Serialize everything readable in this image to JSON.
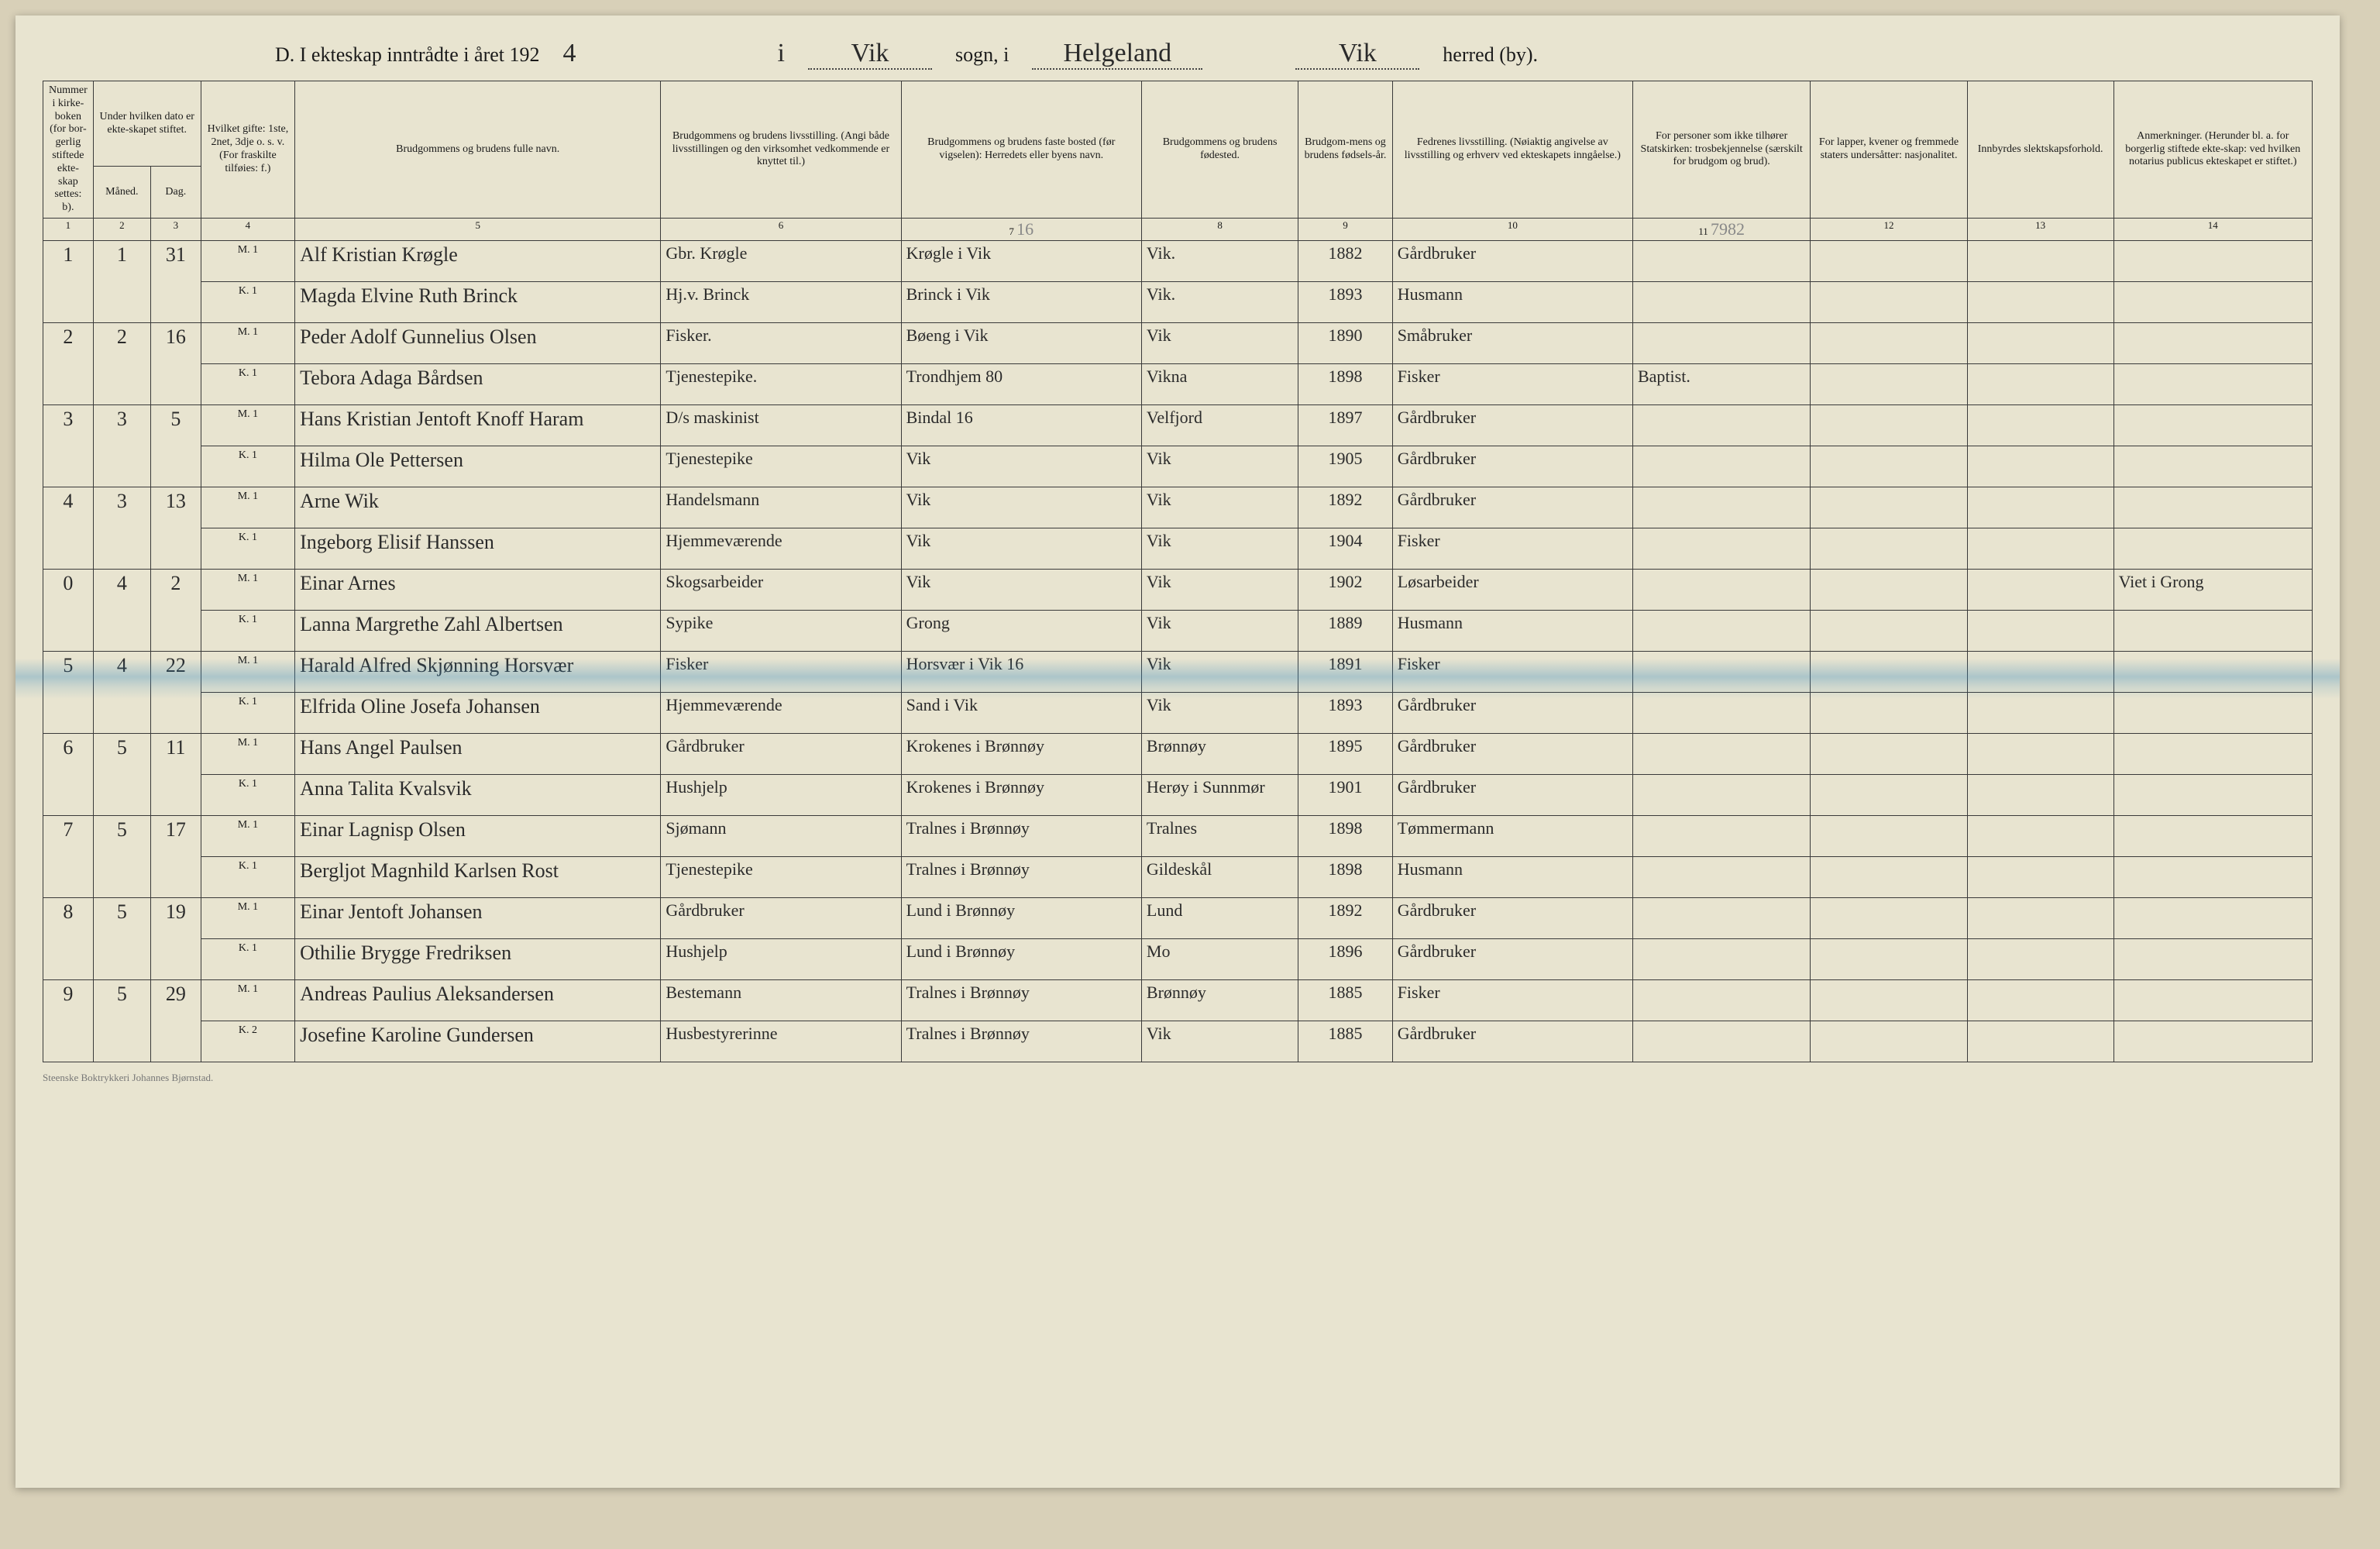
{
  "title": {
    "prefix": "D.  I ekteskap inntrådte i året 192",
    "year_suffix": "4",
    "mid1_prefix": "i",
    "sogn_value": "Vik",
    "mid2": "sogn, i",
    "region_value": "Helgeland",
    "herred_value": "Vik",
    "suffix": "herred (by)."
  },
  "headers": {
    "c1": "Nummer i kirke-boken (for bor-gerlig stiftede ekte-skap settes: b).",
    "c2a": "Under hvilken dato er ekte-skapet stiftet.",
    "c2_m": "Måned.",
    "c2_d": "Dag.",
    "c4": "Hvilket gifte: 1ste, 2net, 3dje o. s. v. (For fraskilte tilføies: f.)",
    "c5": "Brudgommens og brudens fulle navn.",
    "c6": "Brudgommens og brudens livsstilling. (Angi både livsstillingen og den virksomhet vedkommende er knyttet til.)",
    "c7": "Brudgommens og brudens faste bosted (før vigselen): Herredets eller byens navn.",
    "c8": "Brudgommens og brudens fødested.",
    "c9": "Brudgom-mens og brudens fødsels-år.",
    "c10": "Fedrenes livsstilling. (Nøiaktig angivelse av livsstilling og erhverv ved ekteskapets inngåelse.)",
    "c11": "For personer som ikke tilhører Statskirken: trosbekjennelse (særskilt for brudgom og brud).",
    "c12": "For lapper, kvener og fremmede staters undersåtter: nasjonalitet.",
    "c13": "Innbyrdes slektskapsforhold.",
    "c14": "Anmerkninger. (Herunder bl. a. for borgerlig stiftede ekte-skap: ved hvilken notarius publicus ekteskapet er stiftet.)"
  },
  "colnums": [
    "1",
    "2",
    "3",
    "4",
    "5",
    "6",
    "7",
    "8",
    "9",
    "10",
    "11",
    "12",
    "13",
    "14"
  ],
  "pencil_col7": "16",
  "pencil_col11": "7982",
  "rows": [
    {
      "num": "1",
      "maaned": "1",
      "dag": "31",
      "groom": {
        "gifte": "M. 1",
        "navn": "Alf Kristian Krøgle",
        "stilling": "Gbr. Krøgle",
        "bosted": "Krøgle i Vik",
        "fodested": "Vik.",
        "aar": "1882",
        "far": "Gårdbruker",
        "tros": "",
        "nat": "",
        "slekt": "",
        "anm": ""
      },
      "bride": {
        "gifte": "K. 1",
        "navn": "Magda Elvine Ruth Brinck",
        "stilling": "Hj.v. Brinck",
        "bosted": "Brinck i Vik",
        "fodested": "Vik.",
        "aar": "1893",
        "far": "Husmann",
        "tros": "",
        "nat": "",
        "slekt": "",
        "anm": ""
      }
    },
    {
      "num": "2",
      "maaned": "2",
      "dag": "16",
      "groom": {
        "gifte": "M. 1",
        "navn": "Peder Adolf Gunnelius Olsen",
        "stilling": "Fisker.",
        "bosted": "Bøeng i Vik",
        "fodested": "Vik",
        "aar": "1890",
        "far": "Småbruker",
        "tros": "",
        "nat": "",
        "slekt": "",
        "anm": ""
      },
      "bride": {
        "gifte": "K. 1",
        "navn": "Tebora Adaga Bårdsen",
        "stilling": "Tjenestepike.",
        "bosted": "Trondhjem 80",
        "fodested": "Vikna",
        "aar": "1898",
        "far": "Fisker",
        "tros": "Baptist.",
        "nat": "",
        "slekt": "",
        "anm": ""
      }
    },
    {
      "num": "3",
      "maaned": "3",
      "dag": "5",
      "groom": {
        "gifte": "M. 1",
        "navn": "Hans Kristian Jentoft Knoff Haram",
        "stilling": "D/s maskinist",
        "bosted": "Bindal  16",
        "fodested": "Velfjord",
        "aar": "1897",
        "far": "Gårdbruker",
        "tros": "",
        "nat": "",
        "slekt": "",
        "anm": ""
      },
      "bride": {
        "gifte": "K. 1",
        "navn": "Hilma Ole Pettersen",
        "stilling": "Tjenestepike",
        "bosted": "Vik",
        "fodested": "Vik",
        "aar": "1905",
        "far": "Gårdbruker",
        "tros": "",
        "nat": "",
        "slekt": "",
        "anm": ""
      }
    },
    {
      "num": "4",
      "maaned": "3",
      "dag": "13",
      "groom": {
        "gifte": "M. 1",
        "navn": "Arne Wik",
        "stilling": "Handelsmann",
        "bosted": "Vik",
        "fodested": "Vik",
        "aar": "1892",
        "far": "Gårdbruker",
        "tros": "",
        "nat": "",
        "slekt": "",
        "anm": ""
      },
      "bride": {
        "gifte": "K. 1",
        "navn": "Ingeborg Elisif Hanssen",
        "stilling": "Hjemmeværende",
        "bosted": "Vik",
        "fodested": "Vik",
        "aar": "1904",
        "far": "Fisker",
        "tros": "",
        "nat": "",
        "slekt": "",
        "anm": ""
      }
    },
    {
      "num": "0",
      "maaned": "4",
      "dag": "2",
      "groom": {
        "gifte": "M. 1",
        "navn": "Einar Arnes",
        "stilling": "Skogsarbeider",
        "bosted": "Vik",
        "fodested": "Vik",
        "aar": "1902",
        "far": "Løsarbeider",
        "tros": "",
        "nat": "",
        "slekt": "",
        "anm": "Viet i Grong"
      },
      "bride": {
        "gifte": "K. 1",
        "navn": "Lanna Margrethe Zahl Albertsen",
        "stilling": "Sypike",
        "bosted": "Grong",
        "fodested": "Vik",
        "aar": "1889",
        "far": "Husmann",
        "tros": "",
        "nat": "",
        "slekt": "",
        "anm": ""
      }
    },
    {
      "num": "5",
      "maaned": "4",
      "dag": "22",
      "groom": {
        "gifte": "M. 1",
        "navn": "Harald Alfred Skjønning Horsvær",
        "stilling": "Fisker",
        "bosted": "Horsvær i Vik 16",
        "fodested": "Vik",
        "aar": "1891",
        "far": "Fisker",
        "tros": "",
        "nat": "",
        "slekt": "",
        "anm": ""
      },
      "bride": {
        "gifte": "K. 1",
        "navn": "Elfrida Oline Josefa Johansen",
        "stilling": "Hjemmeværende",
        "bosted": "Sand i Vik",
        "fodested": "Vik",
        "aar": "1893",
        "far": "Gårdbruker",
        "tros": "",
        "nat": "",
        "slekt": "",
        "anm": ""
      }
    },
    {
      "num": "6",
      "maaned": "5",
      "dag": "11",
      "groom": {
        "gifte": "M. 1",
        "navn": "Hans Angel Paulsen",
        "stilling": "Gårdbruker",
        "bosted": "Krokenes i Brønnøy",
        "fodested": "Brønnøy",
        "aar": "1895",
        "far": "Gårdbruker",
        "tros": "",
        "nat": "",
        "slekt": "",
        "anm": ""
      },
      "bride": {
        "gifte": "K. 1",
        "navn": "Anna Talita Kvalsvik",
        "stilling": "Hushjelp",
        "bosted": "Krokenes i Brønnøy",
        "fodested": "Herøy i Sunnmør",
        "aar": "1901",
        "far": "Gårdbruker",
        "tros": "",
        "nat": "",
        "slekt": "",
        "anm": ""
      }
    },
    {
      "num": "7",
      "maaned": "5",
      "dag": "17",
      "groom": {
        "gifte": "M. 1",
        "navn": "Einar Lagnisp Olsen",
        "stilling": "Sjømann",
        "bosted": "Tralnes i Brønnøy",
        "fodested": "Tralnes",
        "aar": "1898",
        "far": "Tømmermann",
        "tros": "",
        "nat": "",
        "slekt": "",
        "anm": ""
      },
      "bride": {
        "gifte": "K. 1",
        "navn": "Bergljot Magnhild Karlsen Rost",
        "stilling": "Tjenestepike",
        "bosted": "Tralnes i Brønnøy",
        "fodested": "Gildeskål",
        "aar": "1898",
        "far": "Husmann",
        "tros": "",
        "nat": "",
        "slekt": "",
        "anm": ""
      }
    },
    {
      "num": "8",
      "maaned": "5",
      "dag": "19",
      "groom": {
        "gifte": "M. 1",
        "navn": "Einar Jentoft Johansen",
        "stilling": "Gårdbruker",
        "bosted": "Lund i Brønnøy",
        "fodested": "Lund",
        "aar": "1892",
        "far": "Gårdbruker",
        "tros": "",
        "nat": "",
        "slekt": "",
        "anm": ""
      },
      "bride": {
        "gifte": "K. 1",
        "navn": "Othilie Brygge Fredriksen",
        "stilling": "Hushjelp",
        "bosted": "Lund i Brønnøy",
        "fodested": "Mo",
        "aar": "1896",
        "far": "Gårdbruker",
        "tros": "",
        "nat": "",
        "slekt": "",
        "anm": ""
      }
    },
    {
      "num": "9",
      "maaned": "5",
      "dag": "29",
      "groom": {
        "gifte": "M. 1",
        "navn": "Andreas Paulius Aleksandersen",
        "stilling": "Bestemann",
        "bosted": "Tralnes i Brønnøy",
        "fodested": "Brønnøy",
        "aar": "1885",
        "far": "Fisker",
        "tros": "",
        "nat": "",
        "slekt": "",
        "anm": ""
      },
      "bride": {
        "gifte": "K. 2",
        "navn": "Josefine Karoline Gundersen",
        "stilling": "Husbestyrerinne",
        "bosted": "Tralnes i Brønnøy",
        "fodested": "Vik",
        "aar": "1885",
        "far": "Gårdbruker",
        "tros": "",
        "nat": "",
        "slekt": "",
        "anm": ""
      }
    }
  ],
  "footer": "Steenske Boktrykkeri Johannes Bjørnstad."
}
